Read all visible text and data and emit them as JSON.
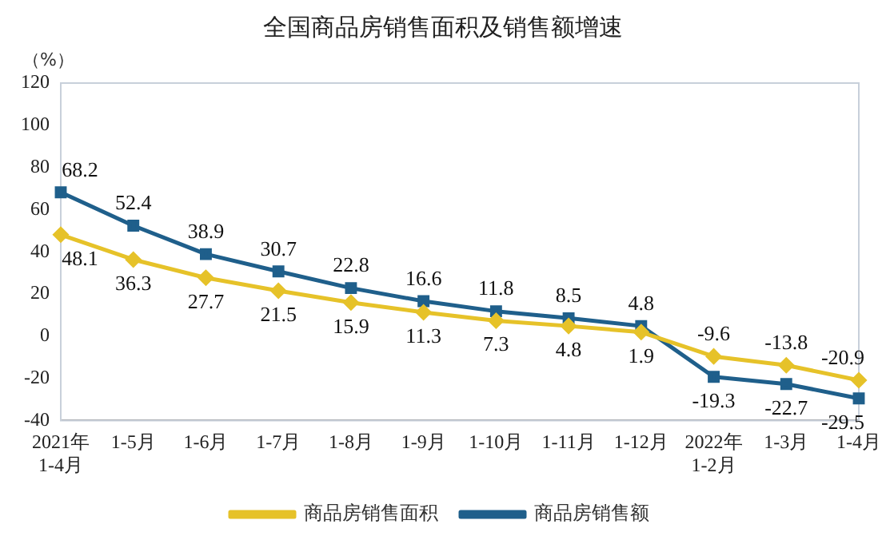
{
  "chart_data": {
    "type": "line",
    "title": "全国商品房销售面积及销售额增速",
    "ylabel": "（%）",
    "categories": [
      "2021年\n1-4月",
      "1-5月",
      "1-6月",
      "1-7月",
      "1-8月",
      "1-9月",
      "1-10月",
      "1-11月",
      "1-12月",
      "2022年\n1-2月",
      "1-3月",
      "1-4月"
    ],
    "series": [
      {
        "name": "商品房销售面积",
        "color": "#e6c229",
        "marker": "diamond",
        "values": [
          48.1,
          36.3,
          27.7,
          21.5,
          15.9,
          11.3,
          7.3,
          4.8,
          1.9,
          -9.6,
          -13.8,
          -20.9
        ]
      },
      {
        "name": "商品房销售额",
        "color": "#1f5f8b",
        "marker": "square",
        "values": [
          68.2,
          52.4,
          38.9,
          30.7,
          22.8,
          16.6,
          11.8,
          8.5,
          4.8,
          -19.3,
          -22.7,
          -29.5
        ]
      }
    ],
    "ylim": [
      -40,
      120
    ],
    "yticks": [
      -40,
      -20,
      0,
      20,
      40,
      60,
      80,
      100,
      120
    ],
    "grid": false,
    "legend": "bottom",
    "data_labels": true,
    "line_style": "solid"
  }
}
